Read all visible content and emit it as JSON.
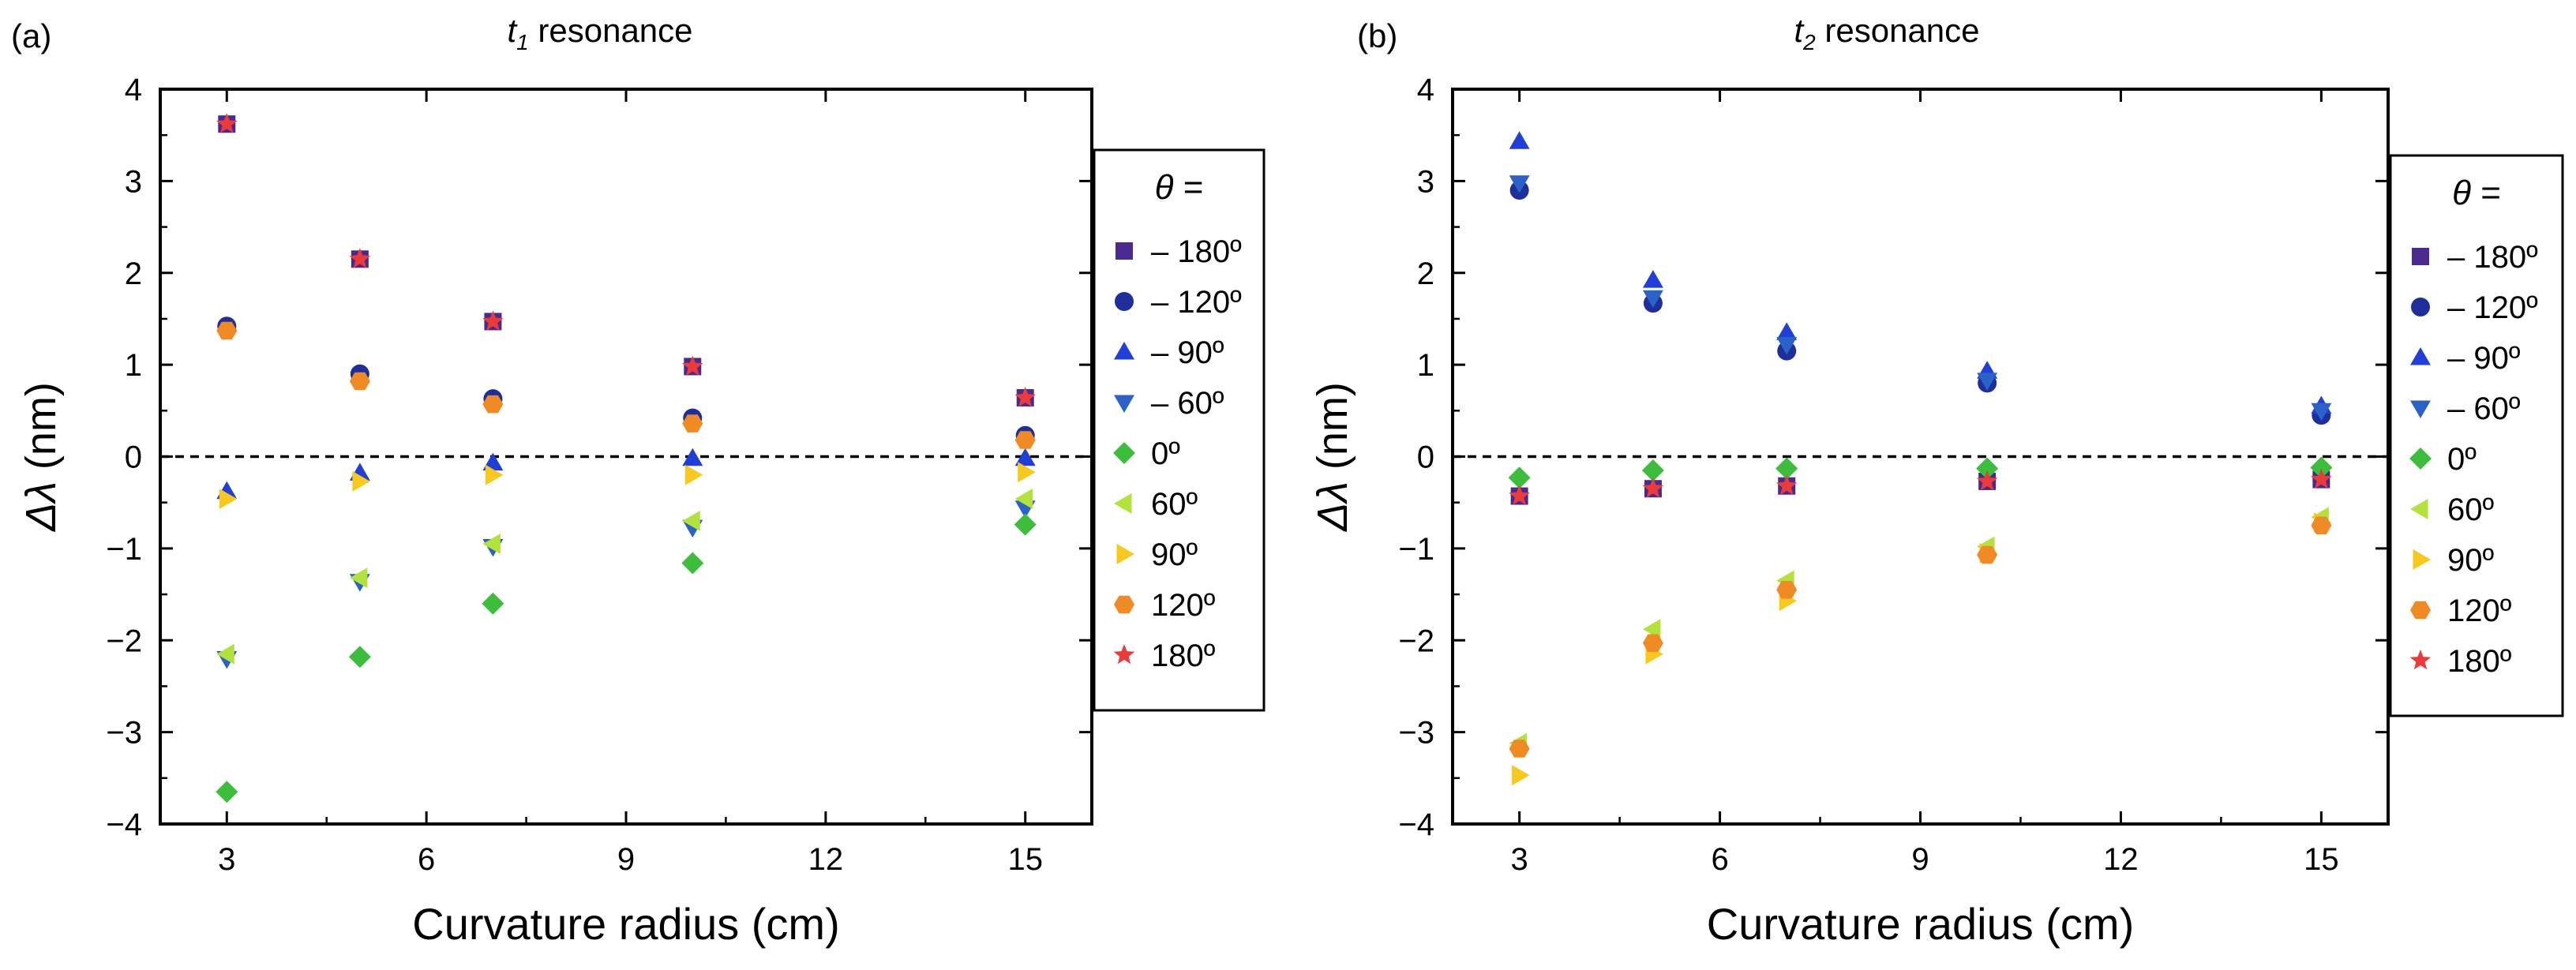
{
  "figure": {
    "colors": {
      "m180": "#4a2a8f",
      "m120": "#1f2f9a",
      "m90": "#1f3fd8",
      "m60": "#2a62c8",
      "p0": "#3cbd3c",
      "p60": "#b4e23c",
      "p90": "#f7c91f",
      "p120": "#f08a24",
      "p180": "#ea3a3a"
    }
  },
  "chart_data": [
    {
      "type": "scatter",
      "panel_label": "(a)",
      "title_symbol": "t",
      "title_subscript": "1",
      "title_rest": " resonance",
      "xlabel": "Curvature radius (cm)",
      "ylabel_symbol": "Δλ",
      "ylabel_unit": " (nm)",
      "xlim": [
        2,
        16
      ],
      "ylim": [
        -4,
        4
      ],
      "xticks": [
        3,
        6,
        9,
        12,
        15
      ],
      "yticks": [
        -4,
        -3,
        -2,
        -1,
        0,
        1,
        2,
        3,
        4
      ],
      "xtick_labels": [
        "3",
        "6",
        "9",
        "12",
        "15"
      ],
      "ytick_labels": [
        "−4",
        "−3",
        "−2",
        "−1",
        "0",
        "1",
        "2",
        "3",
        "4"
      ],
      "reference_line_y": 0,
      "legend_title_symbol": "θ",
      "legend_title_rest": " =",
      "x": [
        3,
        5,
        7,
        10,
        15
      ],
      "series": [
        {
          "name": "– 180º",
          "marker": "square",
          "color_key": "m180",
          "values": [
            3.62,
            2.15,
            1.47,
            0.98,
            0.64
          ]
        },
        {
          "name": "– 120º",
          "marker": "circle",
          "color_key": "m120",
          "values": [
            1.42,
            0.9,
            0.63,
            0.42,
            0.23
          ]
        },
        {
          "name": "– 90º",
          "marker": "triangle-up",
          "color_key": "m90",
          "values": [
            -0.38,
            -0.18,
            -0.07,
            -0.02,
            -0.02
          ]
        },
        {
          "name": "– 60º",
          "marker": "triangle-down",
          "color_key": "m60",
          "values": [
            -2.2,
            -1.36,
            -0.98,
            -0.77,
            -0.56
          ]
        },
        {
          "name": "0º",
          "marker": "diamond",
          "color_key": "p0",
          "values": [
            -3.65,
            -2.18,
            -1.6,
            -1.16,
            -0.74
          ]
        },
        {
          "name": "60º",
          "marker": "triangle-left",
          "color_key": "p60",
          "values": [
            -2.15,
            -1.32,
            -0.95,
            -0.7,
            -0.46
          ]
        },
        {
          "name": "90º",
          "marker": "triangle-right",
          "color_key": "p90",
          "values": [
            -0.46,
            -0.27,
            -0.2,
            -0.2,
            -0.17
          ]
        },
        {
          "name": "120º",
          "marker": "hexagon",
          "color_key": "p120",
          "values": [
            1.37,
            0.82,
            0.57,
            0.36,
            0.18
          ]
        },
        {
          "name": "180º",
          "marker": "star",
          "color_key": "p180",
          "values": [
            3.62,
            2.15,
            1.47,
            0.98,
            0.64
          ]
        }
      ]
    },
    {
      "type": "scatter",
      "panel_label": "(b)",
      "title_symbol": "t",
      "title_subscript": "2",
      "title_rest": " resonance",
      "xlabel": "Curvature radius (cm)",
      "ylabel_symbol": "Δλ",
      "ylabel_unit": " (nm)",
      "xlim": [
        2,
        16
      ],
      "ylim": [
        -4,
        4
      ],
      "xticks": [
        3,
        6,
        9,
        12,
        15
      ],
      "yticks": [
        -4,
        -3,
        -2,
        -1,
        0,
        1,
        2,
        3,
        4
      ],
      "xtick_labels": [
        "3",
        "6",
        "9",
        "12",
        "15"
      ],
      "ytick_labels": [
        "−4",
        "−3",
        "−2",
        "−1",
        "0",
        "1",
        "2",
        "3",
        "4"
      ],
      "reference_line_y": 0,
      "legend_title_symbol": "θ",
      "legend_title_rest": " =",
      "x": [
        3,
        5,
        7,
        10,
        15
      ],
      "series": [
        {
          "name": "– 180º",
          "marker": "square",
          "color_key": "m180",
          "values": [
            -0.43,
            -0.35,
            -0.32,
            -0.27,
            -0.25
          ]
        },
        {
          "name": "– 120º",
          "marker": "circle",
          "color_key": "m120",
          "values": [
            2.9,
            1.67,
            1.15,
            0.8,
            0.45
          ]
        },
        {
          "name": "– 90º",
          "marker": "triangle-up",
          "color_key": "m90",
          "values": [
            3.43,
            1.92,
            1.35,
            0.93,
            0.55
          ]
        },
        {
          "name": "– 60º",
          "marker": "triangle-down",
          "color_key": "m60",
          "values": [
            2.98,
            1.73,
            1.22,
            0.83,
            0.5
          ]
        },
        {
          "name": "0º",
          "marker": "diamond",
          "color_key": "p0",
          "values": [
            -0.23,
            -0.15,
            -0.13,
            -0.13,
            -0.12
          ]
        },
        {
          "name": "60º",
          "marker": "triangle-left",
          "color_key": "p60",
          "values": [
            -3.12,
            -1.88,
            -1.35,
            -0.98,
            -0.66
          ]
        },
        {
          "name": "90º",
          "marker": "triangle-right",
          "color_key": "p90",
          "values": [
            -3.47,
            -2.15,
            -1.57,
            -1.05,
            -0.72
          ]
        },
        {
          "name": "120º",
          "marker": "hexagon",
          "color_key": "p120",
          "values": [
            -3.18,
            -2.03,
            -1.45,
            -1.07,
            -0.75
          ]
        },
        {
          "name": "180º",
          "marker": "star",
          "color_key": "p180",
          "values": [
            -0.43,
            -0.35,
            -0.32,
            -0.27,
            -0.25
          ]
        }
      ]
    }
  ]
}
